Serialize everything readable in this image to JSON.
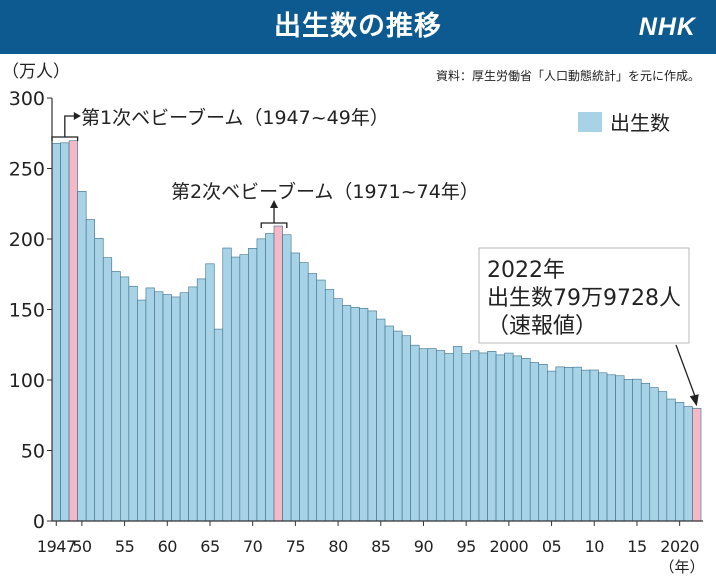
{
  "header": {
    "title": "出生数の推移",
    "logo": "NHK"
  },
  "source": "資料：厚生労働省「人口動態統計」を元に作成。",
  "colors": {
    "header_bg": "#0c5a8f",
    "bar": "#a8d3e6",
    "bar_highlight": "#f4b8c6",
    "bar_stroke": "#3a6f8c"
  },
  "chart_data": {
    "type": "bar",
    "ylabel": "（万人）",
    "xlabel": "（年）",
    "ylim": [
      0,
      300
    ],
    "yticks": [
      0,
      50,
      100,
      150,
      200,
      250,
      300
    ],
    "x_tick_years": [
      1947,
      1950,
      1955,
      1960,
      1965,
      1970,
      1975,
      1980,
      1985,
      1990,
      1995,
      2000,
      2005,
      2010,
      2015,
      2020
    ],
    "x_tick_labels": [
      "1947",
      "50",
      "55",
      "60",
      "65",
      "70",
      "75",
      "80",
      "85",
      "90",
      "95",
      "2000",
      "05",
      "10",
      "15",
      "2020"
    ],
    "legend": {
      "label": "出生数",
      "placement": "top-right"
    },
    "highlight_years": [
      1949,
      1973,
      2022
    ],
    "annotations": [
      {
        "text": "第1次ベビーブーム（1947~49年）",
        "from": 1947,
        "to": 1949
      },
      {
        "text": "第2次ベビーブーム（1971~74年）",
        "from": 1971,
        "to": 1974
      },
      {
        "lines": [
          "2022年",
          "出生数79万9728人",
          "（速報値）"
        ],
        "target": 2022
      }
    ],
    "series": [
      {
        "name": "出生数",
        "x": [
          1947,
          1948,
          1949,
          1950,
          1951,
          1952,
          1953,
          1954,
          1955,
          1956,
          1957,
          1958,
          1959,
          1960,
          1961,
          1962,
          1963,
          1964,
          1965,
          1966,
          1967,
          1968,
          1969,
          1970,
          1971,
          1972,
          1973,
          1974,
          1975,
          1976,
          1977,
          1978,
          1979,
          1980,
          1981,
          1982,
          1983,
          1984,
          1985,
          1986,
          1987,
          1988,
          1989,
          1990,
          1991,
          1992,
          1993,
          1994,
          1995,
          1996,
          1997,
          1998,
          1999,
          2000,
          2001,
          2002,
          2003,
          2004,
          2005,
          2006,
          2007,
          2008,
          2009,
          2010,
          2011,
          2012,
          2013,
          2014,
          2015,
          2016,
          2017,
          2018,
          2019,
          2020,
          2021,
          2022
        ],
        "values": [
          267.9,
          268.2,
          269.7,
          233.8,
          213.8,
          200.5,
          186.8,
          177.0,
          173.1,
          166.5,
          156.7,
          165.3,
          162.6,
          160.6,
          158.9,
          161.9,
          166.0,
          171.7,
          182.4,
          136.1,
          193.6,
          187.2,
          188.9,
          193.4,
          200.1,
          203.9,
          209.2,
          203.0,
          190.1,
          183.3,
          175.5,
          170.9,
          164.2,
          157.7,
          152.9,
          151.5,
          150.9,
          149.0,
          143.2,
          138.3,
          134.7,
          131.4,
          124.7,
          122.2,
          122.3,
          120.9,
          118.8,
          123.8,
          118.7,
          120.7,
          119.2,
          120.3,
          117.8,
          119.1,
          117.1,
          115.4,
          112.4,
          111.1,
          106.3,
          109.3,
          109.0,
          109.1,
          107.0,
          107.1,
          105.1,
          103.7,
          103.0,
          100.4,
          100.6,
          97.7,
          94.6,
          91.8,
          86.5,
          84.1,
          81.2,
          79.97
        ]
      }
    ]
  }
}
